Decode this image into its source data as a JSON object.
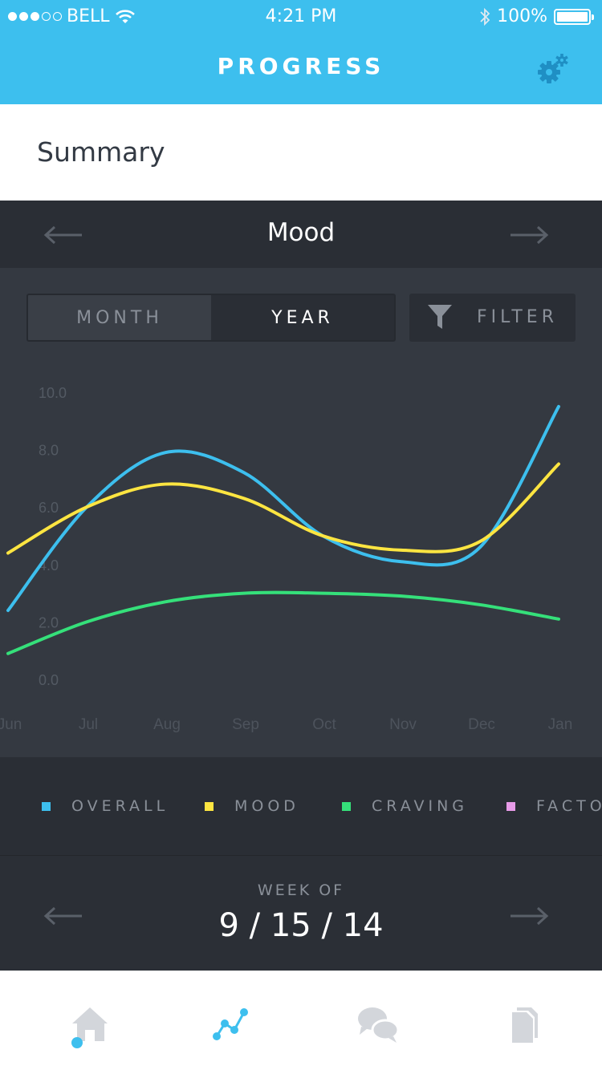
{
  "status": {
    "carrier": "BELL",
    "time": "4:21 PM",
    "battery": "100%",
    "signal_filled": 3,
    "signal_total": 5
  },
  "header": {
    "title": "PROGRESS",
    "settings_icon": "gear-icon"
  },
  "summary": {
    "label": "Summary"
  },
  "metric_nav": {
    "label": "Mood",
    "prev_icon": "arrow-left-icon",
    "next_icon": "arrow-right-icon"
  },
  "controls": {
    "month_label": "MONTH",
    "year_label": "YEAR",
    "selected": "YEAR",
    "filter_label": "FILTER"
  },
  "legend": {
    "items": [
      {
        "label": "OVERALL",
        "color": "#3dbfee"
      },
      {
        "label": "MOOD",
        "color": "#fde541"
      },
      {
        "label": "CRAVING",
        "color": "#35e07a"
      },
      {
        "label": "FACTORS",
        "color": "#e79be8"
      }
    ]
  },
  "week": {
    "label": "WEEK OF",
    "date": "9 / 15 / 14"
  },
  "tabs": [
    {
      "name": "home",
      "icon": "home-icon"
    },
    {
      "name": "progress",
      "icon": "chart-icon",
      "active": true
    },
    {
      "name": "messages",
      "icon": "chat-icon"
    },
    {
      "name": "documents",
      "icon": "document-icon"
    }
  ],
  "chart_data": {
    "type": "line",
    "x": [
      "Jun",
      "Jul",
      "Aug",
      "Sep",
      "Oct",
      "Nov",
      "Dec",
      "Jan"
    ],
    "ylim": [
      0,
      10
    ],
    "yticks": [
      "10.0",
      "8.0",
      "6.0",
      "4.0",
      "2.0",
      "0.0"
    ],
    "grid": false,
    "legend_position": "bottom",
    "series": [
      {
        "name": "OVERALL",
        "color": "#3dbfee",
        "values": [
          2.4,
          6.0,
          7.9,
          7.2,
          5.0,
          4.1,
          4.6,
          9.5
        ]
      },
      {
        "name": "MOOD",
        "color": "#fde541",
        "values": [
          4.4,
          6.0,
          6.8,
          6.3,
          5.0,
          4.5,
          4.8,
          7.5
        ]
      },
      {
        "name": "CRAVING",
        "color": "#35e07a",
        "values": [
          0.9,
          2.0,
          2.7,
          3.0,
          3.0,
          2.9,
          2.6,
          2.1
        ]
      }
    ]
  }
}
